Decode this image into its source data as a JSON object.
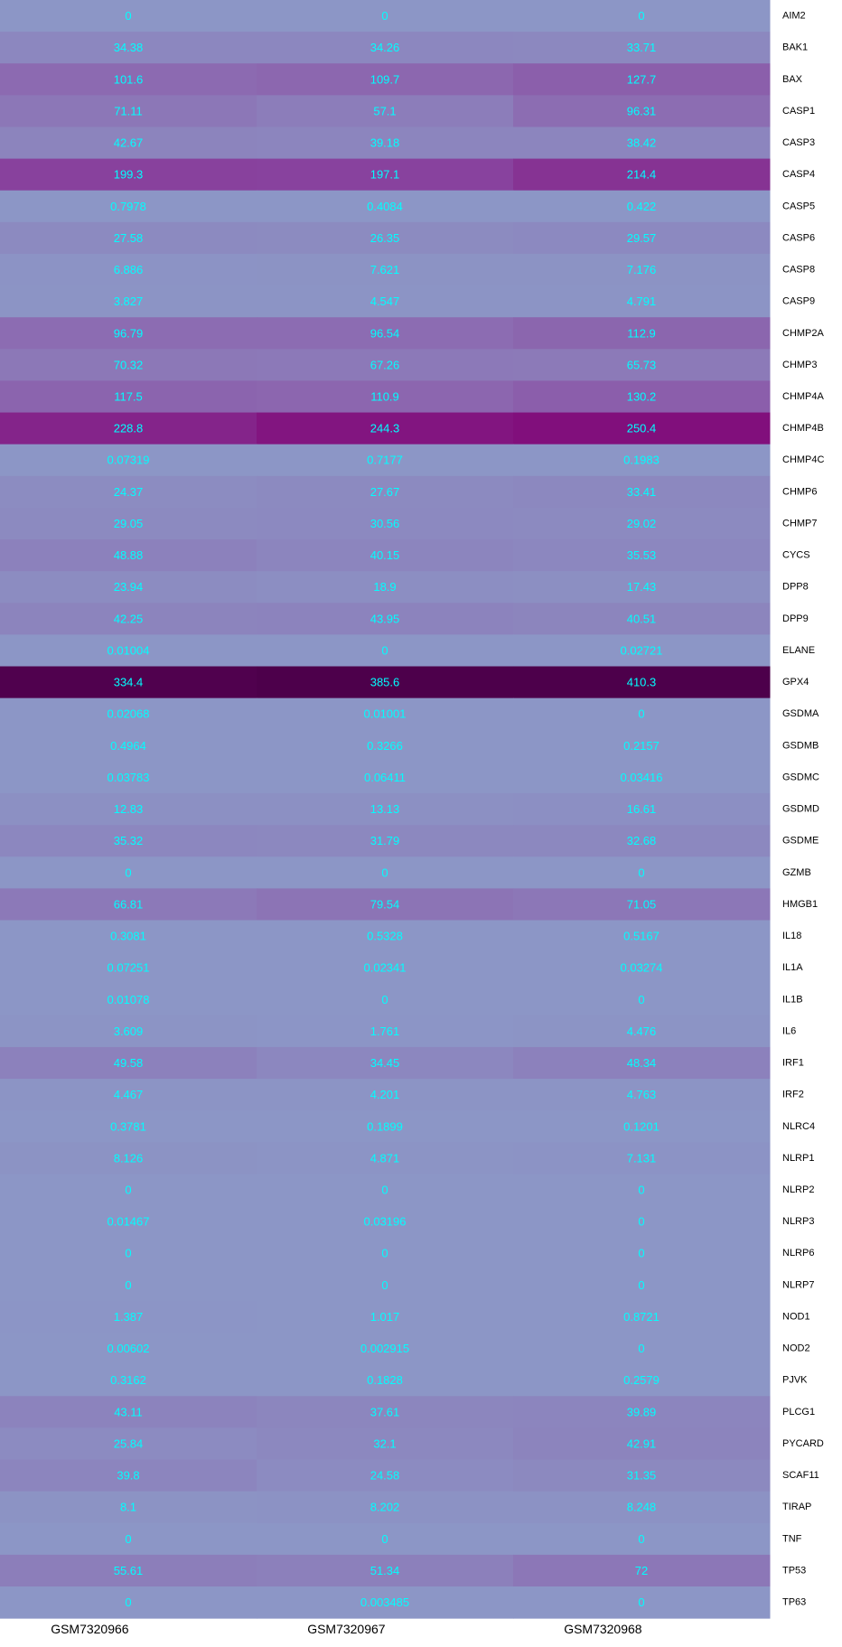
{
  "chart_data": {
    "type": "heatmap",
    "columns": [
      "GSM7320966",
      "GSM7320967",
      "GSM7320968"
    ],
    "rows": [
      "AIM2",
      "BAK1",
      "BAX",
      "CASP1",
      "CASP3",
      "CASP4",
      "CASP5",
      "CASP6",
      "CASP8",
      "CASP9",
      "CHMP2A",
      "CHMP3",
      "CHMP4A",
      "CHMP4B",
      "CHMP4C",
      "CHMP6",
      "CHMP7",
      "CYCS",
      "DPP8",
      "DPP9",
      "ELANE",
      "GPX4",
      "GSDMA",
      "GSDMB",
      "GSDMC",
      "GSDMD",
      "GSDME",
      "GZMB",
      "HMGB1",
      "IL18",
      "IL1A",
      "IL1B",
      "IL6",
      "IRF1",
      "IRF2",
      "NLRC4",
      "NLRP1",
      "NLRP2",
      "NLRP3",
      "NLRP6",
      "NLRP7",
      "NOD1",
      "NOD2",
      "PJVK",
      "PLCG1",
      "PYCARD",
      "SCAF11",
      "TIRAP",
      "TNF",
      "TP53",
      "TP63"
    ],
    "values": [
      [
        "0",
        "0",
        "0"
      ],
      [
        "34.38",
        "34.26",
        "33.71"
      ],
      [
        "101.6",
        "109.7",
        "127.7"
      ],
      [
        "71.11",
        "57.1",
        "96.31"
      ],
      [
        "42.67",
        "39.18",
        "38.42"
      ],
      [
        "199.3",
        "197.1",
        "214.4"
      ],
      [
        "0.7978",
        "0.4084",
        "0.422"
      ],
      [
        "27.58",
        "26.35",
        "29.57"
      ],
      [
        "6.886",
        "7.621",
        "7.176"
      ],
      [
        "3.827",
        "4.547",
        "4.791"
      ],
      [
        "96.79",
        "96.54",
        "112.9"
      ],
      [
        "70.32",
        "67.26",
        "65.73"
      ],
      [
        "117.5",
        "110.9",
        "130.2"
      ],
      [
        "228.8",
        "244.3",
        "250.4"
      ],
      [
        "0.07319",
        "0.7177",
        "0.1983"
      ],
      [
        "24.37",
        "27.67",
        "33.41"
      ],
      [
        "29.05",
        "30.56",
        "29.02"
      ],
      [
        "48.88",
        "40.15",
        "35.53"
      ],
      [
        "23.94",
        "18.9",
        "17.43"
      ],
      [
        "42.25",
        "43.95",
        "40.51"
      ],
      [
        "0.01004",
        "0",
        "0.02721"
      ],
      [
        "334.4",
        "385.6",
        "410.3"
      ],
      [
        "0.02068",
        "0.01001",
        "0"
      ],
      [
        "0.4964",
        "0.3266",
        "0.2157"
      ],
      [
        "0.03783",
        "0.06411",
        "0.03416"
      ],
      [
        "12.83",
        "13.13",
        "16.61"
      ],
      [
        "35.32",
        "31.79",
        "32.68"
      ],
      [
        "0",
        "0",
        "0"
      ],
      [
        "66.81",
        "79.54",
        "71.05"
      ],
      [
        "0.3081",
        "0.5328",
        "0.5167"
      ],
      [
        "0.07251",
        "0.02341",
        "0.03274"
      ],
      [
        "0.01078",
        "0",
        "0"
      ],
      [
        "3.609",
        "1.761",
        "4.476"
      ],
      [
        "49.58",
        "34.45",
        "48.34"
      ],
      [
        "4.467",
        "4.201",
        "4.763"
      ],
      [
        "0.3781",
        "0.1899",
        "0.1201"
      ],
      [
        "8.126",
        "4.871",
        "7.131"
      ],
      [
        "0",
        "0",
        "0"
      ],
      [
        "0.01467",
        "0.03196",
        "0"
      ],
      [
        "0",
        "0",
        "0"
      ],
      [
        "0",
        "0",
        "0"
      ],
      [
        "1.387",
        "1.017",
        "0.8721"
      ],
      [
        "0.00602",
        "0.002915",
        "0"
      ],
      [
        "0.3162",
        "0.1828",
        "0.2579"
      ],
      [
        "43.11",
        "37.61",
        "39.89"
      ],
      [
        "25.84",
        "32.1",
        "42.91"
      ],
      [
        "39.8",
        "24.58",
        "31.35"
      ],
      [
        "8.1",
        "8.202",
        "8.248"
      ],
      [
        "0",
        "0",
        "0"
      ],
      [
        "55.61",
        "51.34",
        "72"
      ],
      [
        "0",
        "0.003485",
        "0"
      ]
    ],
    "color_scale": {
      "low": "#8c96c6",
      "mid_low": "#8c6bb1",
      "mid": "#88419d",
      "mid_high": "#810f7c",
      "high": "#4d004b"
    },
    "value_text_color": "#00FFFF",
    "grid": false,
    "legend": "none"
  }
}
